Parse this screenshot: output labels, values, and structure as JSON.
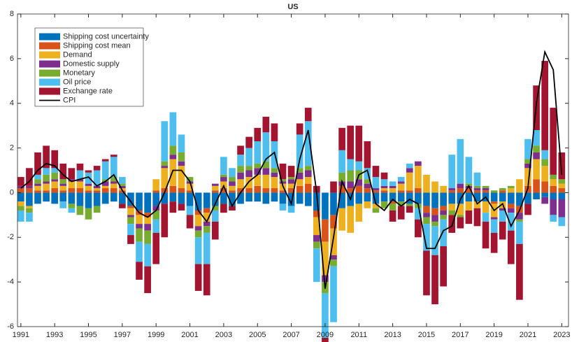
{
  "chart_data": {
    "type": "bar",
    "stacked": true,
    "title": "US",
    "x": [
      1991,
      1991.5,
      1992,
      1992.5,
      1993,
      1993.5,
      1994,
      1994.5,
      1995,
      1995.5,
      1996,
      1996.5,
      1997,
      1997.5,
      1998,
      1998.5,
      1999,
      1999.5,
      2000,
      2000.5,
      2001,
      2001.5,
      2002,
      2002.5,
      2003,
      2003.5,
      2004,
      2004.5,
      2005,
      2005.5,
      2006,
      2006.5,
      2007,
      2007.5,
      2008,
      2008.5,
      2009,
      2009.5,
      2010,
      2010.5,
      2011,
      2011.5,
      2012,
      2012.5,
      2013,
      2013.5,
      2014,
      2014.5,
      2015,
      2015.5,
      2016,
      2016.5,
      2017,
      2017.5,
      2018,
      2018.5,
      2019,
      2019.5,
      2020,
      2020.5,
      2021,
      2021.5,
      2022,
      2022.5,
      2023
    ],
    "xlim": [
      1990.8,
      2023.4
    ],
    "xticks": [
      1991,
      1993,
      1995,
      1997,
      1999,
      2001,
      2003,
      2005,
      2007,
      2009,
      2011,
      2013,
      2015,
      2017,
      2019,
      2021,
      2023
    ],
    "ylim": [
      -6,
      8
    ],
    "yticks": [
      -6,
      -4,
      -2,
      0,
      2,
      4,
      6,
      8
    ],
    "legend": "upper left",
    "series": [
      {
        "name": "Shipping cost uncertainty",
        "color": "#0072bd",
        "values": [
          -0.4,
          -0.6,
          -0.5,
          -0.4,
          -0.5,
          -0.4,
          -0.5,
          -0.6,
          -0.7,
          -0.6,
          -0.5,
          -0.4,
          -0.5,
          -0.6,
          -0.8,
          -0.9,
          -0.6,
          -0.5,
          -0.4,
          -0.5,
          -0.6,
          -0.8,
          -0.7,
          -0.6,
          -0.5,
          -0.6,
          -0.5,
          -0.4,
          -0.4,
          -0.5,
          -0.4,
          -0.5,
          -0.6,
          -0.5,
          -0.6,
          -0.8,
          -1.2,
          -1.0,
          -0.7,
          -0.6,
          -0.5,
          -0.4,
          -0.5,
          -0.4,
          -0.4,
          -0.4,
          -0.5,
          -0.5,
          -0.6,
          -0.7,
          -0.6,
          -0.5,
          -0.5,
          -0.4,
          -0.4,
          -0.4,
          -0.4,
          -0.4,
          -0.5,
          -0.6,
          -0.5,
          -0.3,
          -0.2,
          -0.3,
          -0.3
        ]
      },
      {
        "name": "Shipping cost mean",
        "color": "#d95319",
        "values": [
          0.2,
          0.2,
          0.1,
          0.1,
          0.2,
          0.1,
          0.2,
          0.2,
          0.1,
          0.1,
          0.2,
          0.2,
          0.1,
          -0.1,
          -0.2,
          -0.2,
          0.1,
          0.2,
          0.3,
          0.2,
          0.1,
          -0.2,
          -0.2,
          0.1,
          0.2,
          0.1,
          0.2,
          0.2,
          0.3,
          0.2,
          0.2,
          0.1,
          0.2,
          0.3,
          0.4,
          -0.3,
          -1.0,
          -0.6,
          0.3,
          0.2,
          0.3,
          0.2,
          0.1,
          0.1,
          -0.1,
          0.1,
          0.1,
          0.2,
          -0.3,
          -0.3,
          -0.2,
          0.1,
          0.2,
          0.2,
          0.1,
          0.1,
          -0.1,
          0.1,
          -0.2,
          -0.3,
          0.3,
          0.6,
          0.5,
          0.3,
          0.2
        ]
      },
      {
        "name": "Demand",
        "color": "#edb120",
        "values": [
          -0.2,
          -0.1,
          0.2,
          0.3,
          0.3,
          0.2,
          0.3,
          0.3,
          0.2,
          0.1,
          0.1,
          0.2,
          0.1,
          -0.3,
          -0.4,
          -0.3,
          0.5,
          0.9,
          1.2,
          1.0,
          0.3,
          -0.5,
          -0.4,
          0.2,
          0.3,
          0.2,
          0.4,
          0.5,
          0.5,
          0.6,
          0.5,
          0.3,
          0.2,
          0.3,
          0.3,
          -0.8,
          -1.5,
          -1.2,
          -1.0,
          -1.2,
          -0.8,
          -0.3,
          -0.2,
          0.1,
          0.2,
          0.3,
          0.8,
          1.0,
          0.8,
          0.5,
          0.3,
          -0.3,
          -0.5,
          -0.4,
          -0.3,
          -0.5,
          -0.6,
          -0.3,
          0.2,
          0.6,
          0.8,
          0.9,
          0.7,
          0.3,
          0.2
        ]
      },
      {
        "name": "Domestic supply",
        "color": "#7e2f8e",
        "values": [
          0.1,
          0.1,
          0.1,
          0.1,
          0.1,
          0.1,
          0.1,
          0.1,
          0.1,
          0.1,
          0.2,
          0.1,
          0.1,
          -0.1,
          -0.2,
          -0.3,
          -0.2,
          0.1,
          0.2,
          0.2,
          0.1,
          -0.2,
          -0.2,
          0.1,
          0.2,
          0.2,
          0.3,
          0.3,
          0.3,
          0.3,
          0.2,
          0.1,
          0.2,
          0.3,
          0.3,
          -0.3,
          -0.3,
          -0.2,
          0.2,
          0.3,
          0.3,
          0.2,
          0.1,
          0.1,
          0.1,
          0.1,
          0.2,
          0.2,
          -0.2,
          -0.3,
          -0.2,
          0.1,
          0.2,
          0.1,
          0.1,
          0.1,
          -0.1,
          -0.1,
          -0.2,
          -0.3,
          0.2,
          0.3,
          -0.3,
          -0.7,
          -0.8
        ]
      },
      {
        "name": "Monetary",
        "color": "#77ac30",
        "values": [
          -0.2,
          -0.2,
          0.2,
          0.3,
          0.3,
          0.2,
          -0.2,
          -0.4,
          -0.5,
          -0.3,
          0.1,
          0.2,
          0.1,
          -0.3,
          -0.6,
          -0.6,
          -0.4,
          0.2,
          0.4,
          0.4,
          0.2,
          -0.3,
          -0.3,
          -0.2,
          0.1,
          0.2,
          0.3,
          0.2,
          0.2,
          0.3,
          0.2,
          0.1,
          0.1,
          0.2,
          0.2,
          -0.3,
          -0.5,
          -0.3,
          0.4,
          0.5,
          0.4,
          0.2,
          -0.2,
          -0.3,
          -0.3,
          -0.2,
          -0.1,
          -0.2,
          -0.3,
          -0.2,
          -0.2,
          -0.2,
          -0.1,
          0.1,
          0.1,
          0.1,
          0.1,
          0.1,
          0.1,
          -0.1,
          0.2,
          0.3,
          0.3,
          0.2,
          0.2
        ]
      },
      {
        "name": "Oil price",
        "color": "#4dbeee",
        "values": [
          -0.5,
          -0.4,
          0.2,
          0.3,
          0.2,
          -0.3,
          -0.2,
          0.4,
          0.5,
          0.7,
          0.8,
          0.9,
          0.3,
          -0.5,
          -0.9,
          -1.0,
          -0.6,
          1.8,
          1.5,
          0.8,
          -0.4,
          -1.2,
          -1.4,
          -0.5,
          0.8,
          0.4,
          0.5,
          0.8,
          1.0,
          1.3,
          1.2,
          -0.3,
          -0.3,
          1.5,
          2.0,
          -1.5,
          -2.0,
          -2.5,
          1.0,
          0.5,
          0.4,
          0.5,
          0.5,
          0.3,
          0.2,
          0.2,
          0.2,
          -0.5,
          -1.2,
          -1.3,
          -1.2,
          1.5,
          2.0,
          1.2,
          0.6,
          -0.4,
          -0.6,
          -0.5,
          -0.8,
          -1.0,
          0.9,
          0.7,
          0.4,
          -0.3,
          -0.4
        ]
      },
      {
        "name": "Exchange rate",
        "color": "#a2142f",
        "values": [
          0.4,
          0.8,
          1.0,
          1.0,
          0.8,
          0.7,
          0.5,
          0.3,
          0.1,
          0.2,
          0.1,
          0.1,
          -0.2,
          -0.4,
          -0.8,
          -1.2,
          -1.4,
          -1.5,
          -0.5,
          -0.3,
          -0.6,
          -1.2,
          -1.4,
          -0.8,
          -0.4,
          -0.2,
          0.4,
          0.5,
          0.6,
          0.7,
          0.8,
          0.7,
          0.5,
          0.5,
          0.6,
          0.3,
          -0.2,
          0.5,
          1.0,
          1.5,
          1.6,
          1.2,
          0.5,
          0.3,
          -0.5,
          -0.6,
          -0.3,
          -0.8,
          -2.0,
          -2.2,
          -1.8,
          -0.8,
          -0.5,
          -0.6,
          -0.8,
          -1.2,
          -0.9,
          -0.8,
          -1.5,
          -2.5,
          -0.5,
          2.0,
          4.0,
          3.0,
          1.2
        ]
      },
      {
        "name": "CPI",
        "color": "#000000",
        "type": "line",
        "values": [
          0.2,
          0.5,
          1.0,
          1.3,
          1.2,
          0.8,
          0.5,
          0.6,
          0.7,
          0.3,
          0.5,
          0.8,
          0.1,
          -0.4,
          -0.9,
          -1.1,
          -0.8,
          0.0,
          1.0,
          1.0,
          0.5,
          -0.8,
          -1.3,
          -0.5,
          0.3,
          -0.6,
          0.0,
          0.5,
          0.8,
          1.5,
          1.8,
          0.3,
          -0.5,
          1.5,
          2.8,
          0.0,
          -4.3,
          -2.0,
          0.5,
          -0.3,
          0.8,
          1.0,
          -0.5,
          -0.8,
          -0.3,
          -0.6,
          -0.3,
          -0.5,
          -2.5,
          -2.5,
          -1.7,
          -1.5,
          -0.3,
          0.3,
          -0.5,
          -0.2,
          -0.8,
          -0.5,
          -1.5,
          -0.8,
          0.2,
          4.0,
          6.3,
          5.5,
          0.8
        ]
      }
    ]
  }
}
